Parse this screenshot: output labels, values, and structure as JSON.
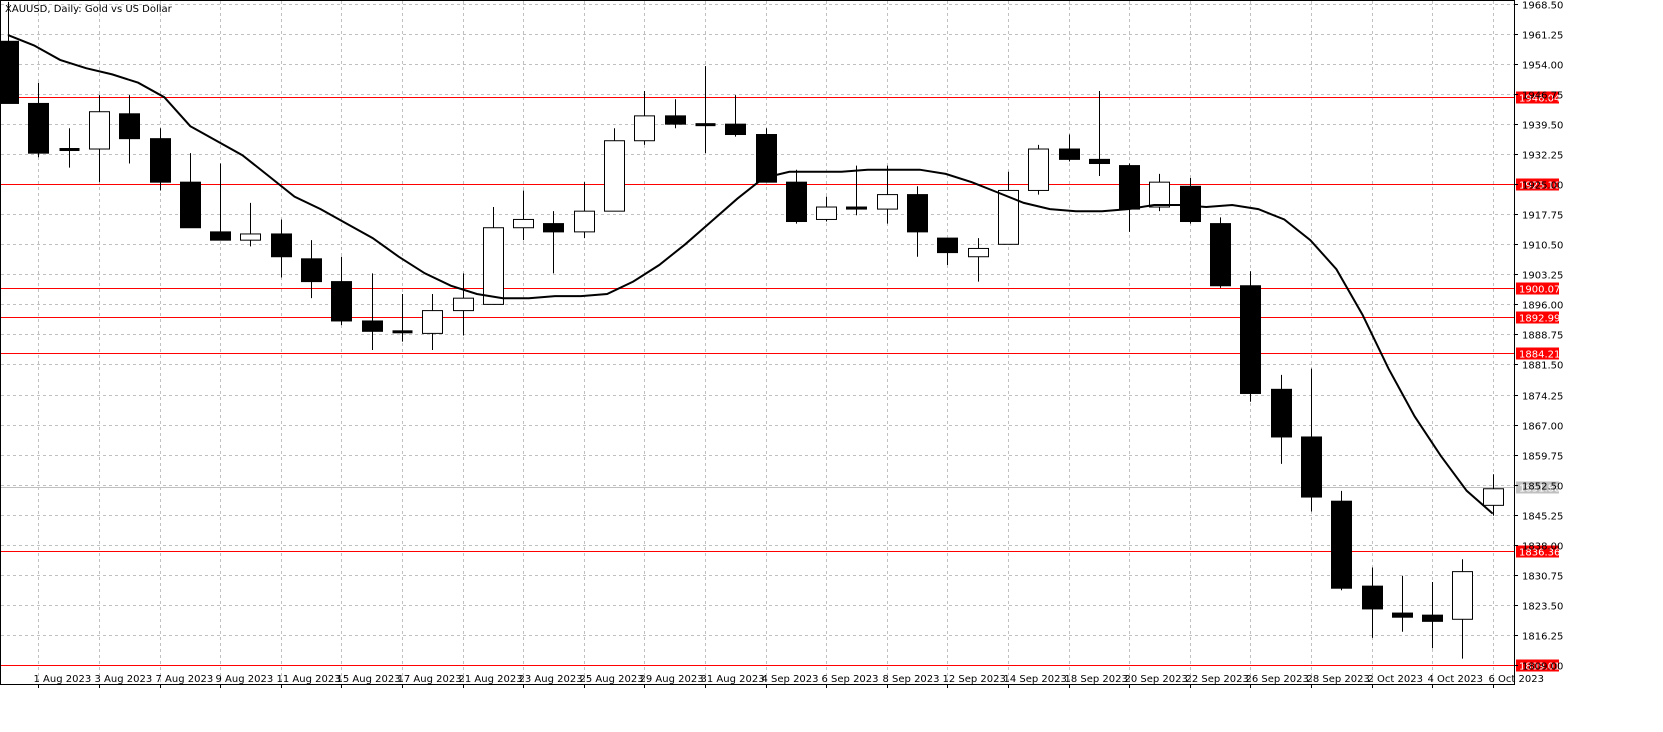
{
  "window": {
    "title": "XAUUSD, Daily:  Gold vs US Dollar"
  },
  "chart_data": {
    "type": "candlestick",
    "symbol": "XAUUSD",
    "timeframe": "Daily",
    "description": "Gold vs US Dollar",
    "ylim": [
      1808.0,
      1968.5
    ],
    "y_ticks": [
      "1968.50",
      "1961.25",
      "1954.00",
      "1946.75",
      "1939.50",
      "1932.25",
      "1925.00",
      "1917.75",
      "1910.50",
      "1903.25",
      "1896.00",
      "1888.75",
      "1881.50",
      "1874.25",
      "1867.00",
      "1859.75",
      "1852.50",
      "1845.25",
      "1838.00",
      "1830.75",
      "1823.50",
      "1816.25",
      "1809.00"
    ],
    "x_tick_labels": [
      "1 Aug 2023",
      "3 Aug 2023",
      "7 Aug 2023",
      "9 Aug 2023",
      "11 Aug 2023",
      "15 Aug 2023",
      "17 Aug 2023",
      "21 Aug 2023",
      "23 Aug 2023",
      "25 Aug 2023",
      "29 Aug 2023",
      "31 Aug 2023",
      "4 Sep 2023",
      "6 Sep 2023",
      "8 Sep 2023",
      "12 Sep 2023",
      "14 Sep 2023",
      "18 Sep 2023",
      "20 Sep 2023",
      "22 Sep 2023",
      "26 Sep 2023",
      "28 Sep 2023",
      "2 Oct 2023",
      "4 Oct 2023",
      "6 Oct 2023"
    ],
    "candles": [
      {
        "date": "31 Jul 2023",
        "open": 1959.5,
        "high": 1969.0,
        "low": 1944.5,
        "close": 1944.5
      },
      {
        "date": "1 Aug 2023",
        "open": 1944.5,
        "high": 1949.5,
        "low": 1931.5,
        "close": 1932.5
      },
      {
        "date": "2 Aug 2023",
        "open": 1933.5,
        "high": 1938.5,
        "low": 1929.0,
        "close": 1933.5
      },
      {
        "date": "3 Aug 2023",
        "open": 1933.5,
        "high": 1946.5,
        "low": 1925.5,
        "close": 1942.5
      },
      {
        "date": "4 Aug 2023",
        "open": 1942.0,
        "high": 1946.5,
        "low": 1930.0,
        "close": 1936.0
      },
      {
        "date": "7 Aug 2023",
        "open": 1936.0,
        "high": 1938.5,
        "low": 1923.5,
        "close": 1925.5
      },
      {
        "date": "8 Aug 2023",
        "open": 1925.5,
        "high": 1932.5,
        "low": 1914.5,
        "close": 1914.5
      },
      {
        "date": "9 Aug 2023",
        "open": 1913.5,
        "high": 1930.0,
        "low": 1911.5,
        "close": 1911.5
      },
      {
        "date": "10 Aug 2023",
        "open": 1911.5,
        "high": 1920.5,
        "low": 1910.0,
        "close": 1913.0
      },
      {
        "date": "11 Aug 2023",
        "open": 1913.0,
        "high": 1916.5,
        "low": 1902.5,
        "close": 1907.5
      },
      {
        "date": "14 Aug 2023",
        "open": 1907.0,
        "high": 1911.5,
        "low": 1897.5,
        "close": 1901.5
      },
      {
        "date": "15 Aug 2023",
        "open": 1901.5,
        "high": 1907.5,
        "low": 1891.0,
        "close": 1892.0
      },
      {
        "date": "16 Aug 2023",
        "open": 1892.0,
        "high": 1903.5,
        "low": 1885.0,
        "close": 1889.5
      },
      {
        "date": "17 Aug 2023",
        "open": 1889.5,
        "high": 1898.5,
        "low": 1887.0,
        "close": 1889.5
      },
      {
        "date": "18 Aug 2023",
        "open": 1889.0,
        "high": 1898.5,
        "low": 1885.0,
        "close": 1894.5
      },
      {
        "date": "21 Aug 2023",
        "open": 1894.5,
        "high": 1903.5,
        "low": 1888.5,
        "close": 1897.5
      },
      {
        "date": "22 Aug 2023",
        "open": 1896.0,
        "high": 1919.5,
        "low": 1896.0,
        "close": 1914.5
      },
      {
        "date": "23 Aug 2023",
        "open": 1914.5,
        "high": 1923.5,
        "low": 1911.5,
        "close": 1916.5
      },
      {
        "date": "24 Aug 2023",
        "open": 1915.5,
        "high": 1918.5,
        "low": 1903.5,
        "close": 1913.5
      },
      {
        "date": "25 Aug 2023",
        "open": 1913.5,
        "high": 1925.5,
        "low": 1912.0,
        "close": 1918.5
      },
      {
        "date": "28 Aug 2023",
        "open": 1918.5,
        "high": 1938.5,
        "low": 1918.5,
        "close": 1935.5
      },
      {
        "date": "29 Aug 2023",
        "open": 1935.5,
        "high": 1947.5,
        "low": 1934.5,
        "close": 1941.5
      },
      {
        "date": "30 Aug 2023",
        "open": 1941.5,
        "high": 1945.5,
        "low": 1938.5,
        "close": 1939.5
      },
      {
        "date": "31 Aug 2023",
        "open": 1939.5,
        "high": 1953.5,
        "low": 1932.5,
        "close": 1939.5
      },
      {
        "date": "1 Sep 2023",
        "open": 1939.5,
        "high": 1946.5,
        "low": 1936.5,
        "close": 1937.0
      },
      {
        "date": "4 Sep 2023",
        "open": 1937.0,
        "high": 1938.5,
        "low": 1925.5,
        "close": 1925.5
      },
      {
        "date": "5 Sep 2023",
        "open": 1925.5,
        "high": 1928.5,
        "low": 1915.5,
        "close": 1916.0
      },
      {
        "date": "6 Sep 2023",
        "open": 1916.5,
        "high": 1922.0,
        "low": 1916.0,
        "close": 1919.5
      },
      {
        "date": "7 Sep 2023",
        "open": 1919.5,
        "high": 1929.5,
        "low": 1917.5,
        "close": 1919.0
      },
      {
        "date": "8 Sep 2023",
        "open": 1919.0,
        "high": 1929.5,
        "low": 1915.5,
        "close": 1922.5
      },
      {
        "date": "11 Sep 2023",
        "open": 1922.5,
        "high": 1924.5,
        "low": 1907.5,
        "close": 1913.5
      },
      {
        "date": "12 Sep 2023",
        "open": 1912.0,
        "high": 1912.0,
        "low": 1905.5,
        "close": 1908.5
      },
      {
        "date": "13 Sep 2023",
        "open": 1907.5,
        "high": 1912.0,
        "low": 1901.5,
        "close": 1909.5
      },
      {
        "date": "14 Sep 2023",
        "open": 1910.5,
        "high": 1928.0,
        "low": 1910.5,
        "close": 1923.5
      },
      {
        "date": "15 Sep 2023",
        "open": 1923.5,
        "high": 1934.5,
        "low": 1922.5,
        "close": 1933.5
      },
      {
        "date": "18 Sep 2023",
        "open": 1933.5,
        "high": 1937.0,
        "low": 1930.5,
        "close": 1931.0
      },
      {
        "date": "19 Sep 2023",
        "open": 1931.0,
        "high": 1947.5,
        "low": 1927.0,
        "close": 1930.0
      },
      {
        "date": "20 Sep 2023",
        "open": 1929.5,
        "high": 1930.0,
        "low": 1913.5,
        "close": 1919.0
      },
      {
        "date": "21 Sep 2023",
        "open": 1919.5,
        "high": 1927.5,
        "low": 1918.5,
        "close": 1925.5
      },
      {
        "date": "22 Sep 2023",
        "open": 1924.5,
        "high": 1926.5,
        "low": 1915.5,
        "close": 1916.0
      },
      {
        "date": "25 Sep 2023",
        "open": 1915.5,
        "high": 1917.0,
        "low": 1900.0,
        "close": 1900.5
      },
      {
        "date": "26 Sep 2023",
        "open": 1900.5,
        "high": 1904.0,
        "low": 1872.5,
        "close": 1874.5
      },
      {
        "date": "27 Sep 2023",
        "open": 1875.5,
        "high": 1879.0,
        "low": 1857.5,
        "close": 1864.0
      },
      {
        "date": "28 Sep 2023",
        "open": 1864.0,
        "high": 1880.5,
        "low": 1846.0,
        "close": 1849.5
      },
      {
        "date": "29 Sep 2023",
        "open": 1848.5,
        "high": 1851.0,
        "low": 1827.0,
        "close": 1827.5
      },
      {
        "date": "2 Oct 2023",
        "open": 1828.0,
        "high": 1832.5,
        "low": 1815.5,
        "close": 1822.5
      },
      {
        "date": "3 Oct 2023",
        "open": 1821.5,
        "high": 1830.5,
        "low": 1817.0,
        "close": 1820.5
      },
      {
        "date": "4 Oct 2023",
        "open": 1821.0,
        "high": 1829.0,
        "low": 1813.0,
        "close": 1819.5
      },
      {
        "date": "5 Oct 2023",
        "open": 1820.0,
        "high": 1834.5,
        "low": 1810.5,
        "close": 1831.5
      },
      {
        "date": "6 Oct 2023",
        "open": 1847.5,
        "high": 1855.0,
        "low": 1845.0,
        "close": 1851.5
      }
    ],
    "moving_average": {
      "values": [
        1961.0,
        1958.5,
        1955.0,
        1953.0,
        1951.5,
        1949.5,
        1946.0,
        1939.0,
        1935.5,
        1932.0,
        1927.0,
        1922.0,
        1919.0,
        1915.5,
        1912.0,
        1907.5,
        1903.5,
        1900.5,
        1898.5,
        1897.5,
        1897.5,
        1898.0,
        1898.0,
        1898.5,
        1901.5,
        1905.5,
        1910.5,
        1916.0,
        1921.5,
        1926.5,
        1928.0,
        1928.0,
        1928.0,
        1928.5,
        1928.5,
        1928.5,
        1927.5,
        1925.5,
        1923.0,
        1920.5,
        1919.0,
        1918.5,
        1918.5,
        1919.0,
        1920.0,
        1920.0,
        1919.5,
        1920.0,
        1919.0,
        1916.5,
        1911.5,
        1904.5,
        1893.5,
        1880.5,
        1869.0,
        1859.5,
        1851.0,
        1845.5
      ],
      "color": "#000000"
    },
    "levels": [
      {
        "label": "1946.04",
        "value": 1946.04,
        "color": "#ff0000"
      },
      {
        "label": "1925.10",
        "value": 1925.1,
        "color": "#ff0000"
      },
      {
        "label": "1900.07",
        "value": 1900.07,
        "color": "#ff0000"
      },
      {
        "label": "1892.99",
        "value": 1892.99,
        "color": "#ff0000"
      },
      {
        "label": "1884.21",
        "value": 1884.21,
        "color": "#ff0000"
      },
      {
        "label": "1836.36",
        "value": 1836.36,
        "color": "#ff0000"
      },
      {
        "label": "1809.01",
        "value": 1809.01,
        "color": "#ff0000"
      }
    ],
    "current_price": {
      "label": "1851.88",
      "value": 1851.88,
      "color": "#c0c0c0"
    },
    "grid": true,
    "colors": {
      "bull_fill": "#ffffff",
      "bear_fill": "#000000",
      "outline": "#000000",
      "grid": "#c0c0c0",
      "level": "#ff0000"
    }
  }
}
